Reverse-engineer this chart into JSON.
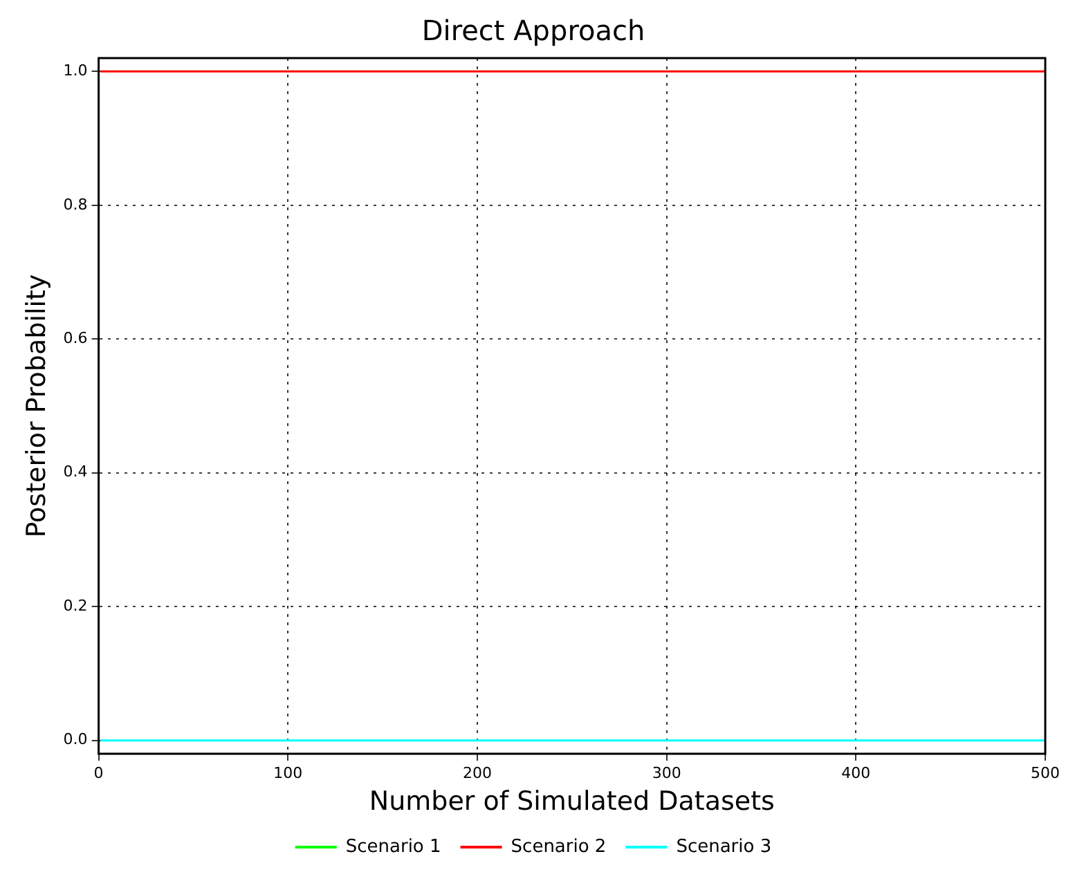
{
  "chart_data": {
    "type": "line",
    "title": "Direct Approach",
    "xlabel": "Number of Simulated Datasets",
    "ylabel": "Posterior Probability",
    "x": [
      1,
      500
    ],
    "series": [
      {
        "name": "Scenario 1",
        "color": "#00ff00",
        "values": [
          null,
          null
        ]
      },
      {
        "name": "Scenario 2",
        "color": "#ff0000",
        "values": [
          1.0,
          1.0
        ]
      },
      {
        "name": "Scenario 3",
        "color": "#00ffff",
        "values": [
          0.0,
          0.0
        ]
      }
    ],
    "xlim": [
      0,
      500
    ],
    "xticks": [
      0,
      100,
      200,
      300,
      400,
      500
    ],
    "ylim": [
      -0.02,
      1.02
    ],
    "yticks": [
      {
        "value": 0,
        "label": "0.0"
      },
      {
        "value": 0.2,
        "label": "0.2"
      },
      {
        "value": 0.4,
        "label": "0.4"
      },
      {
        "value": 0.6,
        "label": "0.6"
      },
      {
        "value": 0.8,
        "label": "0.8"
      },
      {
        "value": 1,
        "label": "1.0"
      }
    ],
    "grid": true,
    "legend": "bottom",
    "marker": "none",
    "line_style": "solid"
  }
}
